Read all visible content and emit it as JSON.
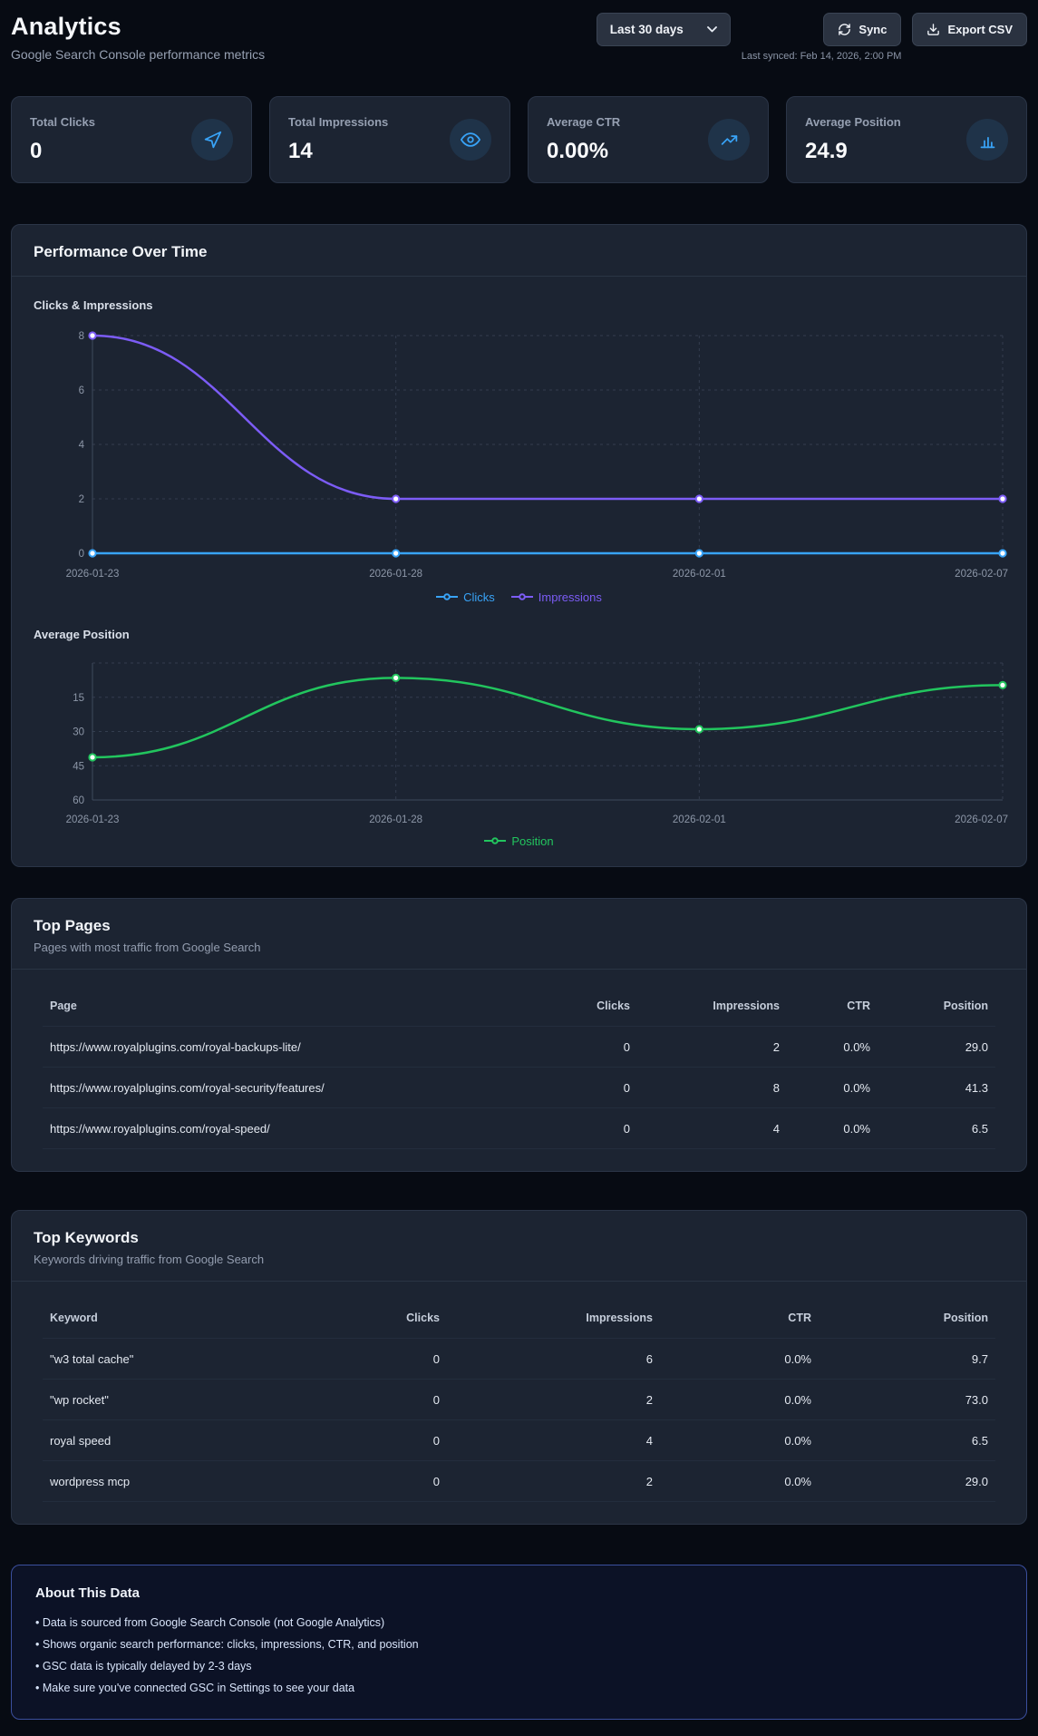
{
  "header": {
    "title": "Analytics",
    "subtitle": "Google Search Console performance metrics",
    "date_range": "Last 30 days",
    "sync_label": "Sync",
    "export_label": "Export CSV",
    "last_synced": "Last synced: Feb 14, 2026, 2:00 PM"
  },
  "stats": [
    {
      "label": "Total Clicks",
      "value": "0",
      "icon": "cursor-icon"
    },
    {
      "label": "Total Impressions",
      "value": "14",
      "icon": "eye-icon"
    },
    {
      "label": "Average CTR",
      "value": "0.00%",
      "icon": "trending-up-icon"
    },
    {
      "label": "Average Position",
      "value": "24.9",
      "icon": "bar-chart-icon"
    }
  ],
  "performance_card": {
    "title": "Performance Over Time"
  },
  "chart_data": [
    {
      "type": "line",
      "title": "Clicks & Impressions",
      "categories": [
        "2026-01-23",
        "2026-01-28",
        "2026-02-01",
        "2026-02-07"
      ],
      "series": [
        {
          "name": "Clicks",
          "values": [
            0,
            0,
            0,
            0
          ],
          "color": "#38a3f7"
        },
        {
          "name": "Impressions",
          "values": [
            8,
            2,
            2,
            2
          ],
          "color": "#7c5cf6"
        }
      ],
      "ylim": [
        0,
        8
      ],
      "yticks": [
        0,
        2,
        4,
        6,
        8
      ],
      "y_reversed": false,
      "grid": true,
      "legend_position": "bottom"
    },
    {
      "type": "line",
      "title": "Average Position",
      "categories": [
        "2026-01-23",
        "2026-01-28",
        "2026-02-01",
        "2026-02-07"
      ],
      "series": [
        {
          "name": "Position",
          "values": [
            41.3,
            6.5,
            29.0,
            9.7
          ],
          "color": "#22c55e"
        }
      ],
      "ylim": [
        0,
        60
      ],
      "yticks": [
        15,
        30,
        45,
        60
      ],
      "y_reversed": true,
      "grid": true,
      "legend_position": "bottom"
    }
  ],
  "top_pages": {
    "title": "Top Pages",
    "subtitle": "Pages with most traffic from Google Search",
    "columns": [
      "Page",
      "Clicks",
      "Impressions",
      "CTR",
      "Position"
    ],
    "rows": [
      [
        "https://www.royalplugins.com/royal-backups-lite/",
        "0",
        "2",
        "0.0%",
        "29.0"
      ],
      [
        "https://www.royalplugins.com/royal-security/features/",
        "0",
        "8",
        "0.0%",
        "41.3"
      ],
      [
        "https://www.royalplugins.com/royal-speed/",
        "0",
        "4",
        "0.0%",
        "6.5"
      ]
    ]
  },
  "top_keywords": {
    "title": "Top Keywords",
    "subtitle": "Keywords driving traffic from Google Search",
    "columns": [
      "Keyword",
      "Clicks",
      "Impressions",
      "CTR",
      "Position"
    ],
    "rows": [
      [
        "\"w3 total cache\"",
        "0",
        "6",
        "0.0%",
        "9.7"
      ],
      [
        "\"wp rocket\"",
        "0",
        "2",
        "0.0%",
        "73.0"
      ],
      [
        "royal speed",
        "0",
        "4",
        "0.0%",
        "6.5"
      ],
      [
        "wordpress mcp",
        "0",
        "2",
        "0.0%",
        "29.0"
      ]
    ]
  },
  "about": {
    "title": "About This Data",
    "items": [
      "Data is sourced from Google Search Console (not Google Analytics)",
      "Shows organic search performance: clicks, impressions, CTR, and position",
      "GSC data is typically delayed by 2-3 days",
      "Make sure you've connected GSC in Settings to see your data"
    ]
  },
  "colors": {
    "accent_blue": "#38a3f7",
    "accent_purple": "#7c5cf6",
    "accent_green": "#22c55e",
    "card_bg": "#1c2432",
    "page_bg": "#070b13",
    "about_border": "#3b4f9e"
  }
}
